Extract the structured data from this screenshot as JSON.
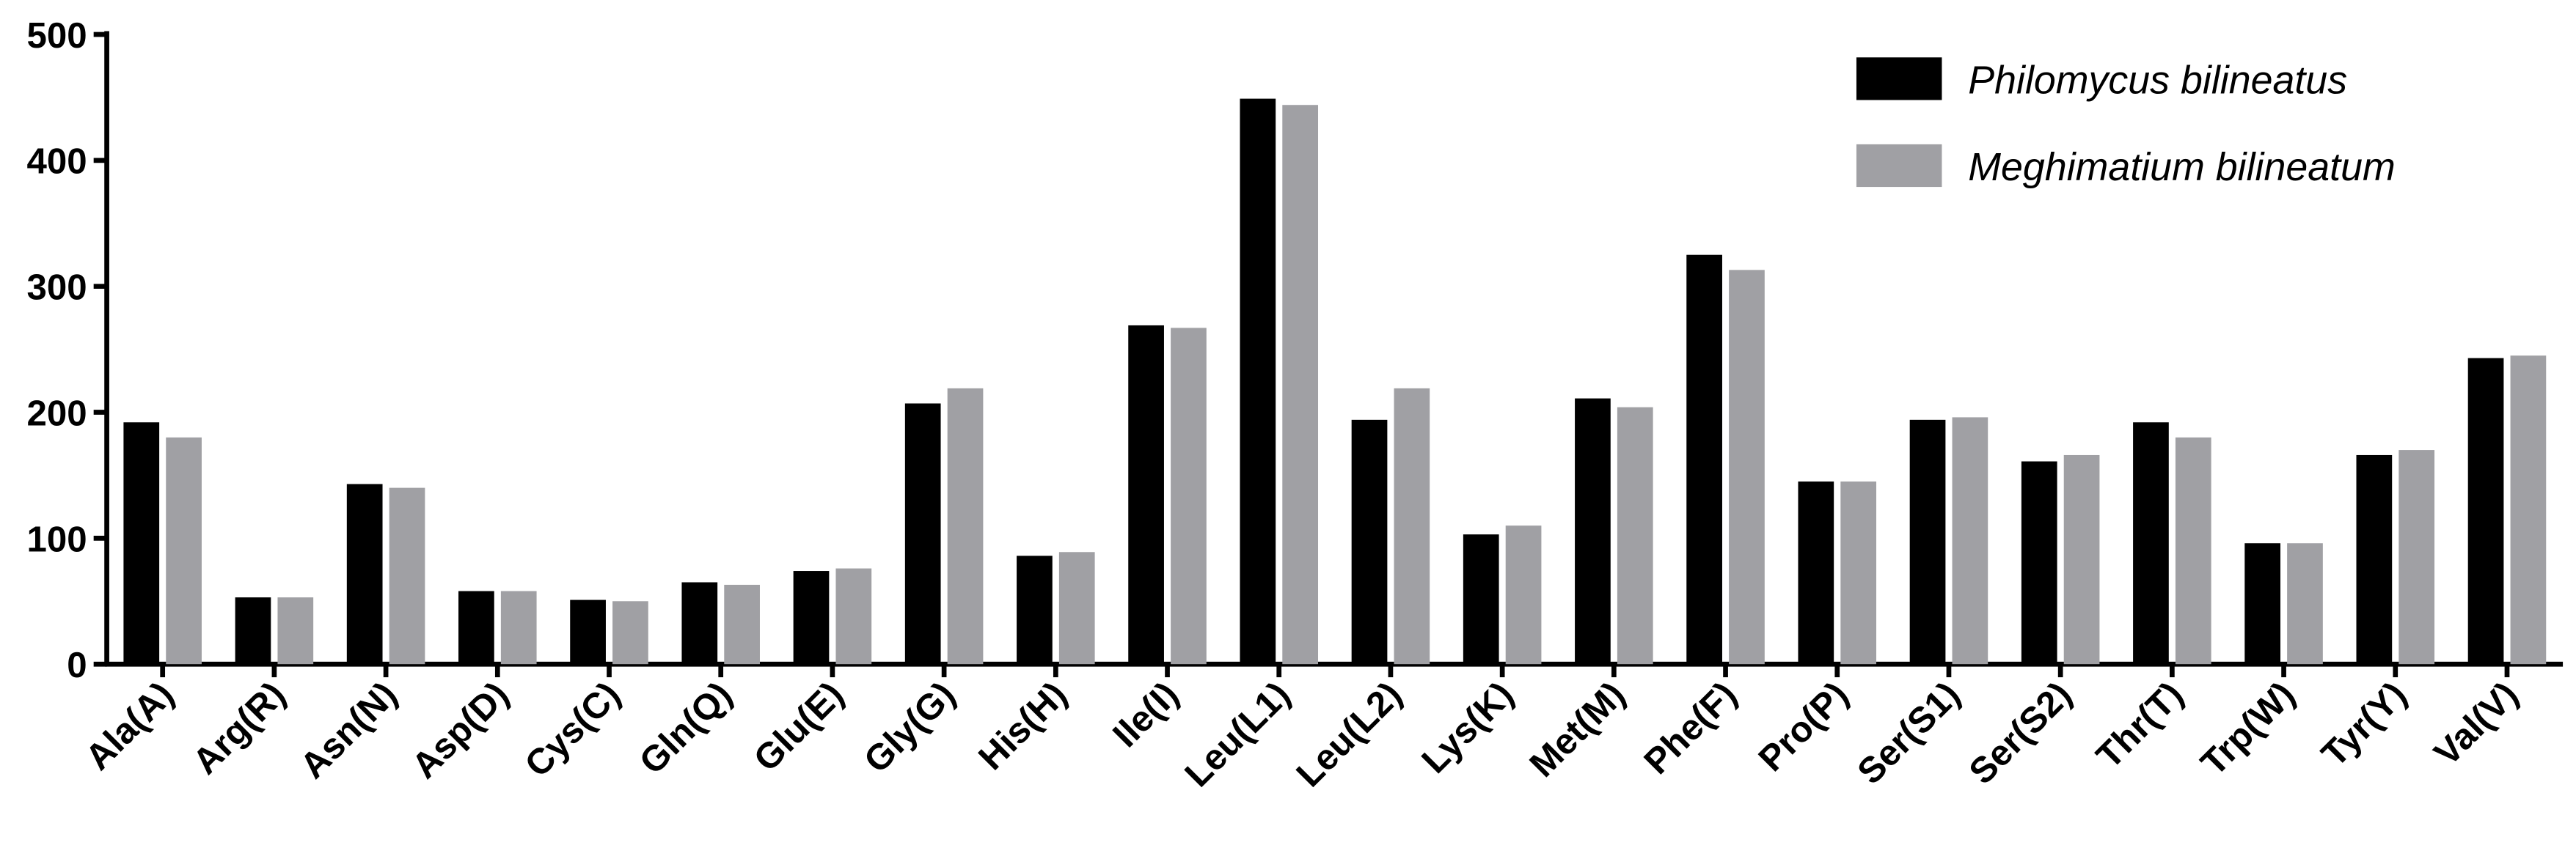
{
  "chart_data": {
    "type": "bar",
    "categories": [
      "Ala(A)",
      "Arg(R)",
      "Asn(N)",
      "Asp(D)",
      "Cys(C)",
      "Gln(Q)",
      "Glu(E)",
      "Gly(G)",
      "His(H)",
      "Ile(I)",
      "Leu(L1)",
      "Leu(L2)",
      "Lys(K)",
      "Met(M)",
      "Phe(F)",
      "Pro(P)",
      "Ser(S1)",
      "Ser(S2)",
      "Thr(T)",
      "Trp(W)",
      "Tyr(Y)",
      "Val(V)"
    ],
    "series": [
      {
        "name": "Philomycus bilineatus",
        "color": "#000000",
        "values": [
          192,
          53,
          143,
          58,
          51,
          65,
          74,
          207,
          86,
          269,
          449,
          194,
          103,
          211,
          325,
          145,
          194,
          161,
          192,
          96,
          166,
          243
        ]
      },
      {
        "name": "Meghimatium bilineatum",
        "color": "#a0a0a4",
        "values": [
          180,
          53,
          140,
          58,
          50,
          63,
          76,
          219,
          89,
          267,
          444,
          219,
          110,
          204,
          313,
          145,
          196,
          166,
          180,
          96,
          170,
          245
        ]
      }
    ],
    "ylim": [
      0,
      500
    ],
    "yticks": [
      0,
      100,
      200,
      300,
      400,
      500
    ],
    "legend": "top-right"
  }
}
